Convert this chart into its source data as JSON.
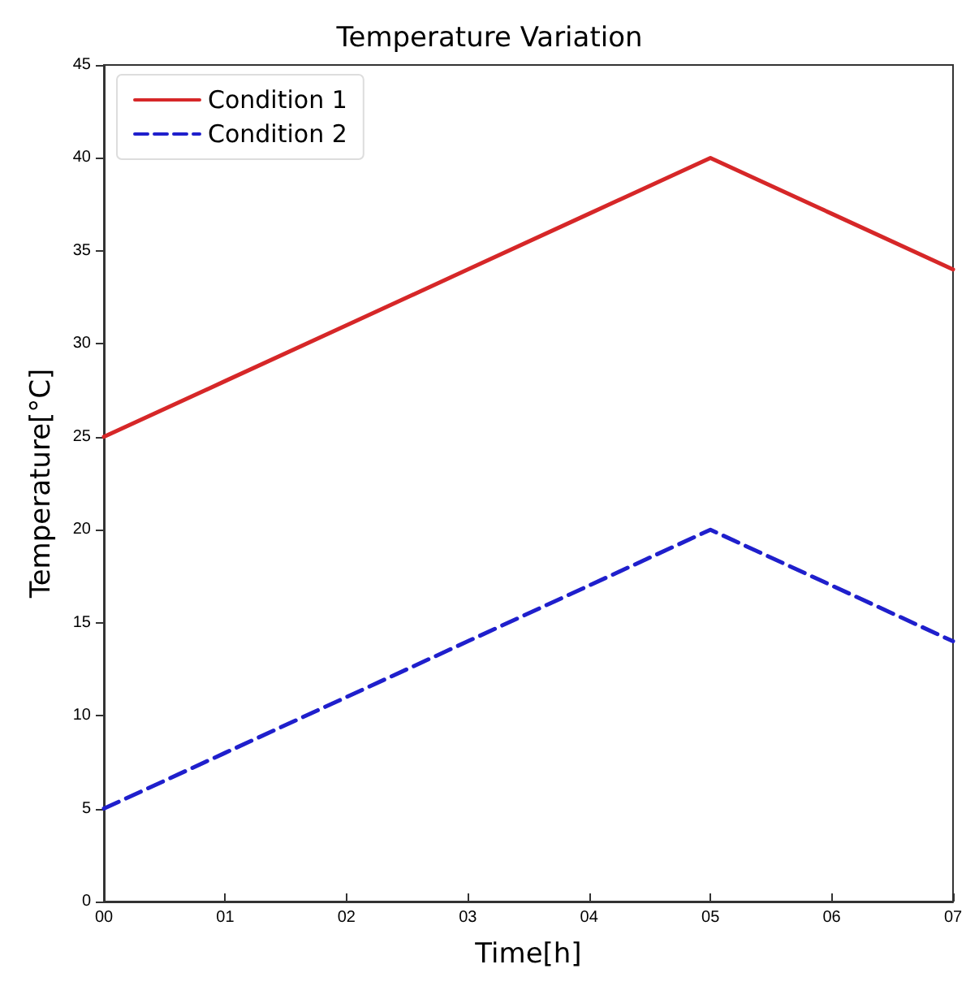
{
  "chart_data": {
    "type": "line",
    "title": "Temperature Variation",
    "xlabel": "Time[h]",
    "ylabel": "Temperature[°C]",
    "x": [
      0,
      1,
      2,
      3,
      4,
      5,
      6,
      7
    ],
    "series": [
      {
        "name": "Condition 1",
        "color": "#d62728",
        "line_style": "solid",
        "values": [
          25,
          28,
          31,
          34,
          37,
          40,
          37,
          34
        ]
      },
      {
        "name": "Condition 2",
        "color": "#1f1fcc",
        "line_style": "dashed",
        "values": [
          5,
          8,
          11,
          14,
          17,
          20,
          17,
          14
        ]
      }
    ],
    "xlim": [
      0,
      7
    ],
    "xticks": [
      {
        "value": 0,
        "label": "00"
      },
      {
        "value": 1,
        "label": "01"
      },
      {
        "value": 2,
        "label": "02"
      },
      {
        "value": 3,
        "label": "03"
      },
      {
        "value": 4,
        "label": "04"
      },
      {
        "value": 5,
        "label": "05"
      },
      {
        "value": 6,
        "label": "06"
      },
      {
        "value": 7,
        "label": "07"
      }
    ],
    "ylim": [
      0,
      45
    ],
    "yticks": [
      0,
      5,
      10,
      15,
      20,
      25,
      30,
      35,
      40,
      45
    ],
    "grid": false,
    "legend": "top left",
    "marker": "none"
  }
}
